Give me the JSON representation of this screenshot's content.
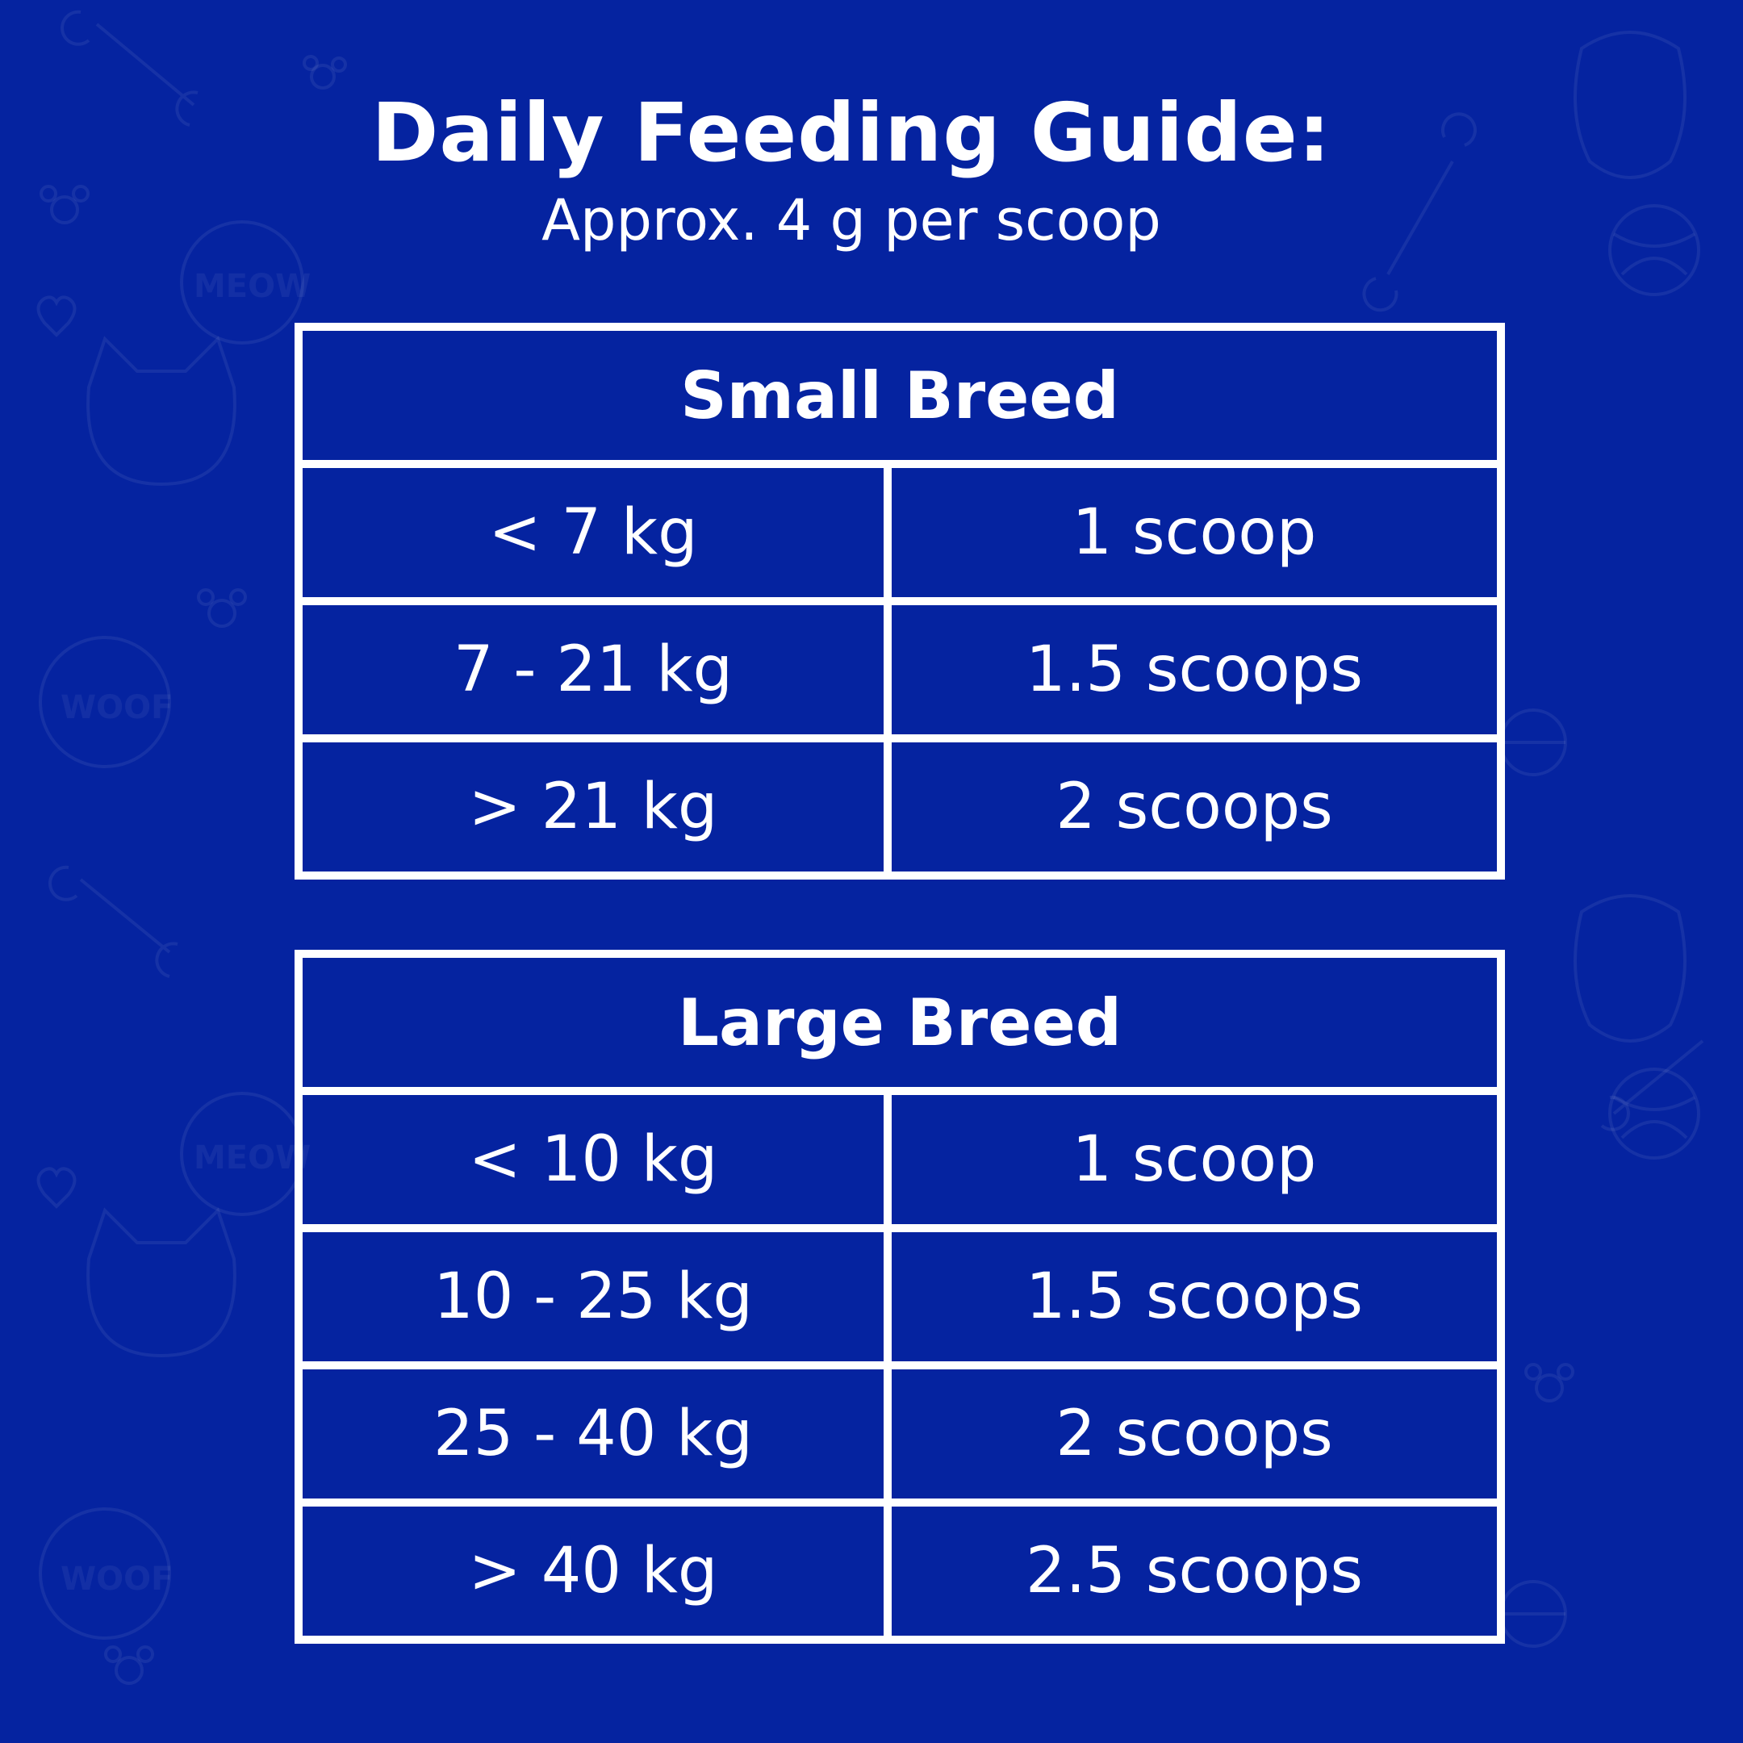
{
  "title": "Daily Feeding Guide:",
  "subtitle": "Approx. 4 g per scoop",
  "colors": {
    "background": "#0523a0",
    "foreground": "#ffffff"
  },
  "background_pattern_words": [
    "MEOW",
    "WOOF",
    "MEOW",
    "WOOF"
  ],
  "small_breed": {
    "heading": "Small Breed",
    "rows": [
      {
        "weight": "< 7 kg",
        "amount": "1 scoop"
      },
      {
        "weight": "7 - 21 kg",
        "amount": "1.5 scoops"
      },
      {
        "weight": "> 21 kg",
        "amount": "2 scoops"
      }
    ]
  },
  "large_breed": {
    "heading": "Large Breed",
    "rows": [
      {
        "weight": "< 10 kg",
        "amount": "1 scoop"
      },
      {
        "weight": "10 - 25 kg",
        "amount": "1.5 scoops"
      },
      {
        "weight": "25 - 40 kg",
        "amount": "2 scoops"
      },
      {
        "weight": "> 40 kg",
        "amount": "2.5 scoops"
      }
    ]
  }
}
